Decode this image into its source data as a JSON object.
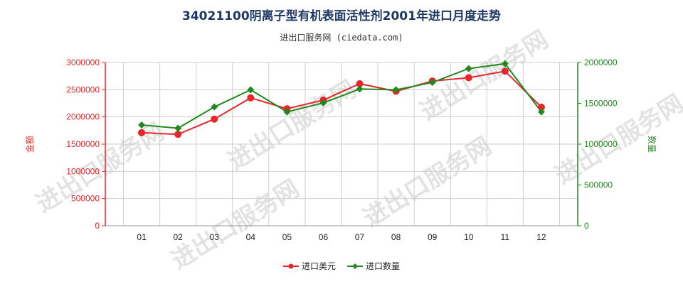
{
  "chart_data": {
    "type": "line",
    "title": "34021100阴离子型有机表面活性剂2001年进口月度走势",
    "subtitle": "进出口服务网 (ciedata.com)",
    "categories": [
      "01",
      "02",
      "03",
      "04",
      "05",
      "06",
      "07",
      "08",
      "09",
      "10",
      "11",
      "12"
    ],
    "left_axis": {
      "label": "金额",
      "ylim": [
        0,
        3000000
      ],
      "ticks": [
        "0",
        "500000",
        "1000000",
        "1500000",
        "2000000",
        "2500000",
        "3000000"
      ],
      "color": "#e8262a"
    },
    "right_axis": {
      "label": "数量",
      "ylim": [
        0,
        2000000
      ],
      "ticks": [
        "0",
        "500000",
        "1000000",
        "1500000",
        "2000000"
      ],
      "color": "#1e8a1e"
    },
    "series": [
      {
        "name": "进口美元",
        "axis": "left",
        "color": "#e8262a",
        "marker": "circle",
        "values": [
          1710000,
          1680000,
          1960000,
          2350000,
          2150000,
          2310000,
          2610000,
          2470000,
          2660000,
          2720000,
          2840000,
          2180000
        ]
      },
      {
        "name": "进口数量",
        "axis": "right",
        "color": "#1e8a1e",
        "marker": "diamond",
        "values": [
          1235000,
          1195000,
          1455000,
          1665000,
          1395000,
          1505000,
          1675000,
          1665000,
          1755000,
          1925000,
          1985000,
          1395000
        ]
      }
    ],
    "grid": true,
    "legend_position": "bottom-center"
  },
  "watermark": "进出口服务网"
}
